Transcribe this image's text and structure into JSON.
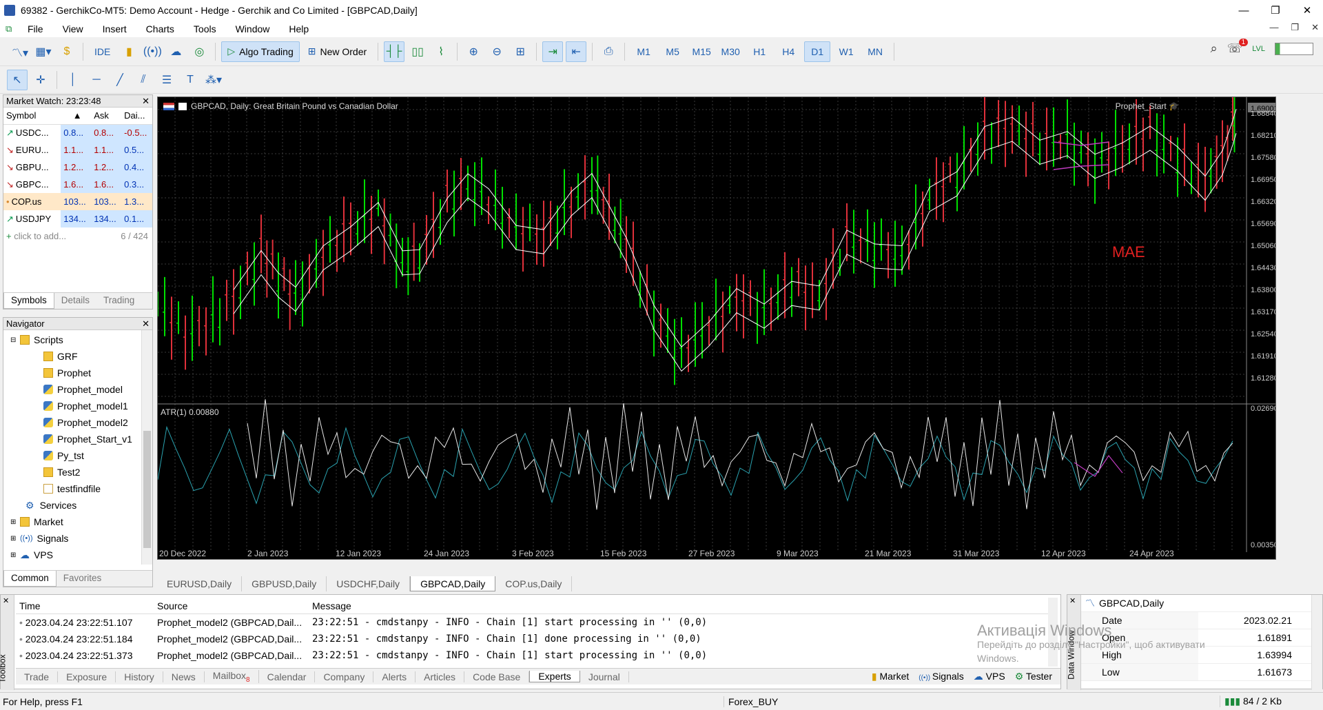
{
  "window": {
    "title": "69382 - GerchikCo-MT5: Demo Account - Hedge - Gerchik and Co Limited - [GBPCAD,Daily]"
  },
  "menu": [
    "File",
    "View",
    "Insert",
    "Charts",
    "Tools",
    "Window",
    "Help"
  ],
  "toolbar": {
    "ide": "IDE",
    "algo_trading": "Algo Trading",
    "new_order": "New Order",
    "timeframes": [
      "M1",
      "M5",
      "M15",
      "M30",
      "H1",
      "H4",
      "D1",
      "W1",
      "MN"
    ],
    "active_tf": "D1",
    "notification_count": "1"
  },
  "market_watch": {
    "title": "Market Watch: 23:23:48",
    "columns": [
      "Symbol",
      "Ask",
      "Dai..."
    ],
    "rows": [
      {
        "symbol": "USDC...",
        "bid": "0.8...",
        "ask": "0.8...",
        "daily": "-0.5...",
        "dir": "up"
      },
      {
        "symbol": "EURU...",
        "bid": "1.1...",
        "ask": "1.1...",
        "daily": "0.5...",
        "dir": "down"
      },
      {
        "symbol": "GBPU...",
        "bid": "1.2...",
        "ask": "1.2...",
        "daily": "0.4...",
        "dir": "down"
      },
      {
        "symbol": "GBPC...",
        "bid": "1.6...",
        "ask": "1.6...",
        "daily": "0.3...",
        "dir": "down"
      },
      {
        "symbol": "COP.us",
        "bid": "103...",
        "ask": "103...",
        "daily": "1.3...",
        "dir": "dot"
      },
      {
        "symbol": "USDJPY",
        "bid": "134...",
        "ask": "134...",
        "daily": "0.1...",
        "dir": "up"
      }
    ],
    "add_text": "click to add...",
    "count": "6 / 424",
    "tabs": [
      "Symbols",
      "Details",
      "Trading"
    ]
  },
  "navigator": {
    "title": "Navigator",
    "scripts_label": "Scripts",
    "scripts": [
      "GRF",
      "Prophet",
      "Prophet_model",
      "Prophet_model1",
      "Prophet_model2",
      "Prophet_Start_v1",
      "Py_tst",
      "Test2",
      "testfindfile"
    ],
    "groups": [
      "Services",
      "Market",
      "Signals",
      "VPS"
    ],
    "tabs": [
      "Common",
      "Favorites"
    ]
  },
  "chart": {
    "header": "GBPCAD, Daily:  Great Britain Pound vs Canadian Dollar",
    "expert": "Prophet_Start",
    "mae_label": "MAE",
    "indicator_label": "ATR(1) 0.00880",
    "price_labels": [
      "1.69001",
      "1.68840",
      "1.68210",
      "1.67580",
      "1.66950",
      "1.66320",
      "1.65690",
      "1.65060",
      "1.64430",
      "1.63800",
      "1.63170",
      "1.62540",
      "1.61910",
      "1.61280"
    ],
    "current_price": "1.69001",
    "atr_labels": [
      "0.02690",
      "0.00350"
    ],
    "date_labels": [
      "20 Dec 2022",
      "2 Jan 2023",
      "12 Jan 2023",
      "24 Jan 2023",
      "3 Feb 2023",
      "15 Feb 2023",
      "27 Feb 2023",
      "9 Mar 2023",
      "21 Mar 2023",
      "31 Mar 2023",
      "12 Apr 2023",
      "24 Apr 2023"
    ],
    "colors": {
      "bull": "#00e000",
      "bear": "#e0303a",
      "bg": "#000000",
      "ma": "#ffffff",
      "forecast": "#c03cc0",
      "atr": "#2aa3b0"
    }
  },
  "chart_tabs": [
    "EURUSD,Daily",
    "GBPUSD,Daily",
    "USDCHF,Daily",
    "GBPCAD,Daily",
    "COP.us,Daily"
  ],
  "active_chart_tab": "GBPCAD,Daily",
  "toolbox": {
    "columns": [
      "Time",
      "Source",
      "Message"
    ],
    "rows": [
      {
        "time": "2023.04.24 23:22:51.107",
        "source": "Prophet_model2 (GBPCAD,Dail...",
        "message": "23:22:51 - cmdstanpy - INFO - Chain [1] start processing in '' (0,0)"
      },
      {
        "time": "2023.04.24 23:22:51.184",
        "source": "Prophet_model2 (GBPCAD,Dail...",
        "message": "23:22:51 - cmdstanpy - INFO - Chain [1] done processing in '' (0,0)"
      },
      {
        "time": "2023.04.24 23:22:51.373",
        "source": "Prophet_model2 (GBPCAD,Dail...",
        "message": "23:22:51 - cmdstanpy - INFO - Chain [1] start processing in '' (0,0)"
      }
    ],
    "tabs": [
      "Trade",
      "Exposure",
      "History",
      "News",
      "Mailbox",
      "Calendar",
      "Company",
      "Alerts",
      "Articles",
      "Code Base",
      "Experts",
      "Journal"
    ],
    "mailbox_count": "8",
    "active_tab": "Experts",
    "side_label": "Toolbox",
    "right_buttons": [
      "Market",
      "Signals",
      "VPS",
      "Tester"
    ]
  },
  "data_window": {
    "title": "GBPCAD,Daily",
    "side_label": "Data Window",
    "rows": [
      {
        "k": "Date",
        "v": "2023.02.21"
      },
      {
        "k": "Open",
        "v": "1.61891"
      },
      {
        "k": "High",
        "v": "1.63994"
      },
      {
        "k": "Low",
        "v": "1.61673"
      }
    ]
  },
  "watermark": {
    "line1": "Активація Windows",
    "line2": "Перейдіть до розділу \"Настройки\", щоб активувати",
    "line3": "Windows."
  },
  "status": {
    "help": "For Help, press F1",
    "profile": "Forex_BUY",
    "traffic": "84 / 2 Kb"
  }
}
